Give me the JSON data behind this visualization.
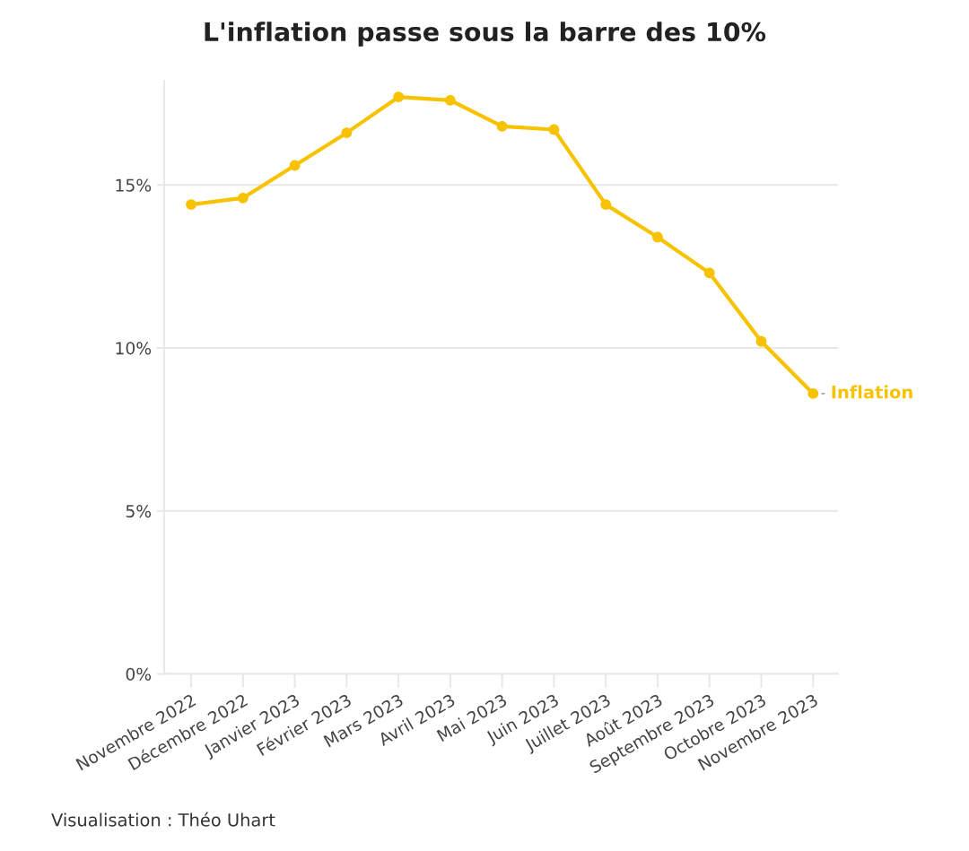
{
  "chart_data": {
    "type": "line",
    "title": "L'inflation passe sous la barre des 10%",
    "categories": [
      "Novembre 2022",
      "Décembre 2022",
      "Janvier 2023",
      "Février 2023",
      "Mars 2023",
      "Avril 2023",
      "Mai 2023",
      "Juin 2023",
      "Juillet 2023",
      "Août 2023",
      "Septembre 2023",
      "Octobre 2023",
      "Novembre 2023"
    ],
    "series": [
      {
        "name": "Inflation",
        "color": "#f7c300",
        "values": [
          14.4,
          14.6,
          15.6,
          16.6,
          17.7,
          17.6,
          16.8,
          16.7,
          14.4,
          13.4,
          12.3,
          10.2,
          8.6
        ]
      }
    ],
    "ylim": [
      0,
      18.2
    ],
    "yticks": [
      {
        "value": 0,
        "label": "0%"
      },
      {
        "value": 5,
        "label": "5%"
      },
      {
        "value": 10,
        "label": "10%"
      },
      {
        "value": 15,
        "label": "15%"
      }
    ],
    "grid": "y",
    "marker": "circle",
    "line_style": "solid",
    "annotations": [
      "Visualisation : Théo Uhart"
    ]
  }
}
